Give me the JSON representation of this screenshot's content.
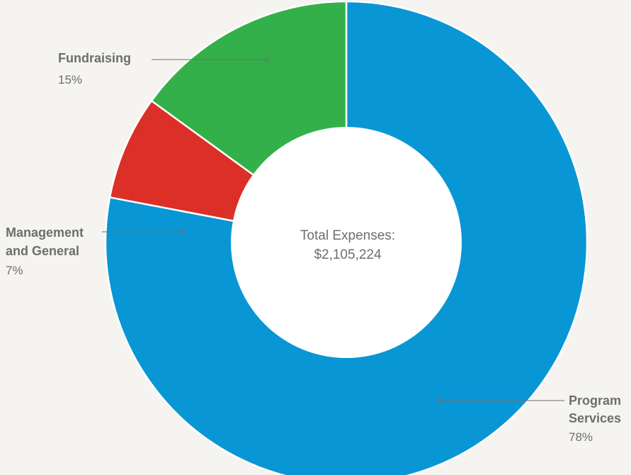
{
  "chart_data": {
    "type": "pie",
    "variant": "donut",
    "center_label": {
      "line1": "Total Expenses:",
      "line2": "$2,105,224"
    },
    "slices": [
      {
        "name": "Program Services",
        "name_lines": [
          "Program",
          "Services"
        ],
        "value": 78,
        "value_label": "78%",
        "color": "#0996d5"
      },
      {
        "name": "Management and General",
        "name_lines": [
          "Management",
          "and General"
        ],
        "value": 7,
        "value_label": "7%",
        "color": "#dc2f27"
      },
      {
        "name": "Fundraising",
        "name_lines": [
          "Fundraising"
        ],
        "value": 15,
        "value_label": "15%",
        "color": "#33b04a"
      }
    ],
    "colors": {
      "background": "#f5f4f0",
      "label_text": "#6d6e71",
      "leader_line": "#6d6e71",
      "hole": "#ffffff"
    }
  }
}
